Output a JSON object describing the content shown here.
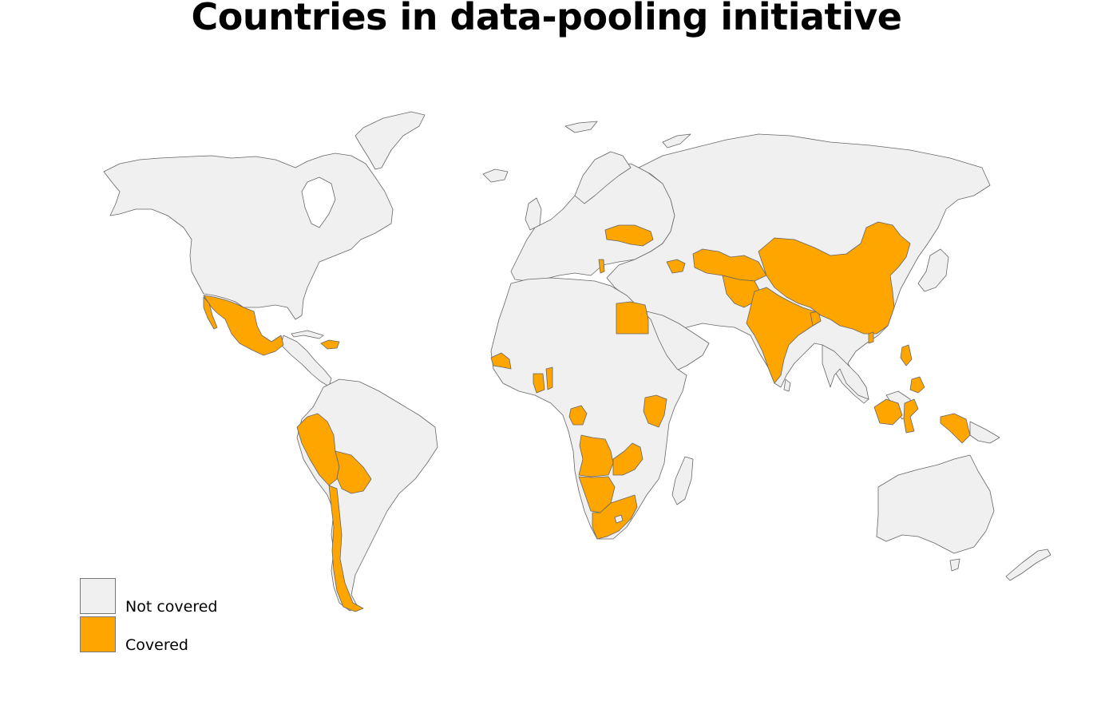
{
  "title": "Countries in data-pooling initiative",
  "colors": {
    "not_covered": "#f0f0f0",
    "covered": "#ffa500",
    "border": "#666666",
    "background": "#ffffff"
  },
  "legend": [
    {
      "label": "Not covered",
      "color": "#f0f0f0"
    },
    {
      "label": "Covered",
      "color": "#ffa500"
    }
  ],
  "covered_countries": [
    "Mexico",
    "Haiti",
    "Dominican Republic",
    "Peru",
    "Bolivia",
    "Chile",
    "Senegal",
    "Gambia",
    "Ghana",
    "Togo",
    "Benin",
    "Gabon",
    "Kenya",
    "Angola",
    "Zambia",
    "Malawi",
    "Namibia",
    "Botswana",
    "South Africa",
    "Lesotho",
    "Egypt",
    "Ukraine",
    "Moldova",
    "Albania",
    "North Macedonia",
    "Georgia",
    "Armenia",
    "Azerbaijan",
    "Turkmenistan",
    "Uzbekistan",
    "Tajikistan",
    "Kyrgyzstan",
    "Afghanistan",
    "Pakistan",
    "India",
    "Nepal",
    "Bangladesh",
    "China",
    "Taiwan",
    "Philippines",
    "Indonesia",
    "Papua New Guinea"
  ]
}
